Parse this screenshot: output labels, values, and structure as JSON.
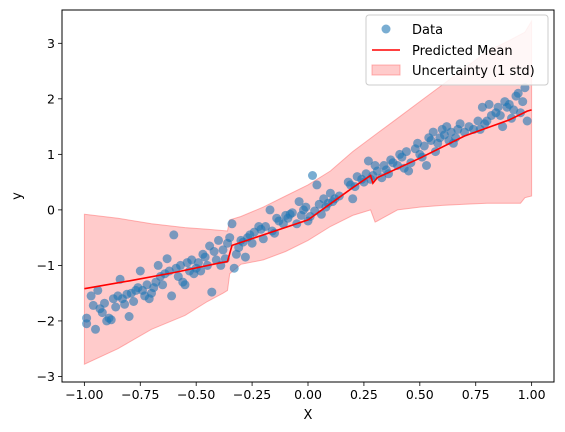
{
  "chart_data": {
    "type": "scatter",
    "title": "",
    "xlabel": "X",
    "ylabel": "y",
    "xlim": [
      -1.1,
      1.1
    ],
    "ylim": [
      -3.1,
      3.6
    ],
    "xticks": [
      -1.0,
      -0.75,
      -0.5,
      -0.25,
      0.0,
      0.25,
      0.5,
      0.75,
      1.0
    ],
    "xtick_labels": [
      "−1.00",
      "−0.75",
      "−0.50",
      "−0.25",
      "0.00",
      "0.25",
      "0.50",
      "0.75",
      "1.00"
    ],
    "yticks": [
      -3,
      -2,
      -1,
      0,
      1,
      2,
      3
    ],
    "ytick_labels": [
      "−3",
      "−2",
      "−1",
      "0",
      "1",
      "2",
      "3"
    ],
    "grid": false,
    "legend_position": "top-right",
    "series": [
      {
        "name": "Data",
        "kind": "scatter",
        "color": "#1f77b4",
        "points": [
          [
            -0.99,
            -1.95
          ],
          [
            -0.99,
            -2.05
          ],
          [
            -0.97,
            -1.55
          ],
          [
            -0.96,
            -1.72
          ],
          [
            -0.95,
            -2.15
          ],
          [
            -0.94,
            -1.45
          ],
          [
            -0.93,
            -1.78
          ],
          [
            -0.92,
            -1.85
          ],
          [
            -0.91,
            -1.68
          ],
          [
            -0.9,
            -2.0
          ],
          [
            -0.89,
            -1.95
          ],
          [
            -0.88,
            -1.98
          ],
          [
            -0.87,
            -1.6
          ],
          [
            -0.86,
            -1.75
          ],
          [
            -0.85,
            -1.55
          ],
          [
            -0.84,
            -1.25
          ],
          [
            -0.83,
            -1.6
          ],
          [
            -0.82,
            -1.7
          ],
          [
            -0.81,
            -1.52
          ],
          [
            -0.8,
            -1.92
          ],
          [
            -0.79,
            -1.5
          ],
          [
            -0.78,
            -1.65
          ],
          [
            -0.77,
            -1.45
          ],
          [
            -0.76,
            -1.4
          ],
          [
            -0.75,
            -1.1
          ],
          [
            -0.74,
            -1.45
          ],
          [
            -0.73,
            -1.55
          ],
          [
            -0.72,
            -1.35
          ],
          [
            -0.71,
            -1.6
          ],
          [
            -0.7,
            -1.5
          ],
          [
            -0.69,
            -1.4
          ],
          [
            -0.68,
            -1.3
          ],
          [
            -0.67,
            -1.0
          ],
          [
            -0.66,
            -1.2
          ],
          [
            -0.65,
            -1.35
          ],
          [
            -0.64,
            -1.15
          ],
          [
            -0.63,
            -0.88
          ],
          [
            -0.62,
            -1.1
          ],
          [
            -0.61,
            -1.55
          ],
          [
            -0.6,
            -0.45
          ],
          [
            -0.59,
            -1.05
          ],
          [
            -0.58,
            -1.2
          ],
          [
            -0.57,
            -1.0
          ],
          [
            -0.56,
            -1.3
          ],
          [
            -0.55,
            -1.35
          ],
          [
            -0.54,
            -0.95
          ],
          [
            -0.53,
            -1.1
          ],
          [
            -0.52,
            -0.9
          ],
          [
            -0.51,
            -1.15
          ],
          [
            -0.5,
            -1.05
          ],
          [
            -0.49,
            -0.95
          ],
          [
            -0.48,
            -1.1
          ],
          [
            -0.47,
            -0.8
          ],
          [
            -0.46,
            -0.85
          ],
          [
            -0.45,
            -1.0
          ],
          [
            -0.44,
            -0.65
          ],
          [
            -0.43,
            -1.48
          ],
          [
            -0.42,
            -0.75
          ],
          [
            -0.41,
            -0.9
          ],
          [
            -0.4,
            -0.55
          ],
          [
            -0.39,
            -1.0
          ],
          [
            -0.38,
            -0.72
          ],
          [
            -0.37,
            -0.88
          ],
          [
            -0.36,
            -0.6
          ],
          [
            -0.35,
            -0.5
          ],
          [
            -0.34,
            -0.25
          ],
          [
            -0.33,
            -1.05
          ],
          [
            -0.32,
            -0.8
          ],
          [
            -0.31,
            -0.68
          ],
          [
            -0.3,
            -0.55
          ],
          [
            -0.29,
            -0.58
          ],
          [
            -0.28,
            -0.85
          ],
          [
            -0.27,
            -0.5
          ],
          [
            -0.26,
            -0.45
          ],
          [
            -0.25,
            -0.6
          ],
          [
            -0.24,
            -0.4
          ],
          [
            -0.22,
            -0.3
          ],
          [
            -0.21,
            -0.35
          ],
          [
            -0.2,
            -0.52
          ],
          [
            -0.19,
            -0.3
          ],
          [
            -0.17,
            0.0
          ],
          [
            -0.16,
            -0.38
          ],
          [
            -0.15,
            -0.42
          ],
          [
            -0.14,
            -0.15
          ],
          [
            -0.13,
            -0.2
          ],
          [
            -0.11,
            -0.25
          ],
          [
            -0.1,
            -0.1
          ],
          [
            -0.09,
            -0.15
          ],
          [
            -0.08,
            -0.08
          ],
          [
            -0.07,
            -0.05
          ],
          [
            -0.05,
            -0.25
          ],
          [
            -0.04,
            0.15
          ],
          [
            -0.03,
            -0.1
          ],
          [
            -0.02,
            0.0
          ],
          [
            -0.01,
            0.05
          ],
          [
            0.0,
            -0.2
          ],
          [
            0.01,
            -0.12
          ],
          [
            0.02,
            0.62
          ],
          [
            0.03,
            -0.02
          ],
          [
            0.04,
            0.45
          ],
          [
            0.05,
            0.1
          ],
          [
            0.06,
            -0.08
          ],
          [
            0.07,
            0.2
          ],
          [
            0.08,
            0.05
          ],
          [
            0.09,
            0.12
          ],
          [
            0.1,
            0.3
          ],
          [
            0.11,
            0.15
          ],
          [
            0.12,
            0.2
          ],
          [
            0.14,
            0.25
          ],
          [
            0.18,
            0.5
          ],
          [
            0.19,
            0.45
          ],
          [
            0.2,
            0.2
          ],
          [
            0.21,
            0.42
          ],
          [
            0.22,
            0.6
          ],
          [
            0.24,
            0.55
          ],
          [
            0.25,
            0.5
          ],
          [
            0.26,
            0.65
          ],
          [
            0.27,
            0.88
          ],
          [
            0.28,
            0.55
          ],
          [
            0.29,
            0.62
          ],
          [
            0.3,
            0.8
          ],
          [
            0.31,
            0.7
          ],
          [
            0.33,
            0.58
          ],
          [
            0.34,
            0.8
          ],
          [
            0.35,
            0.72
          ],
          [
            0.36,
            0.65
          ],
          [
            0.37,
            0.9
          ],
          [
            0.38,
            0.85
          ],
          [
            0.4,
            0.8
          ],
          [
            0.41,
            1.0
          ],
          [
            0.42,
            0.95
          ],
          [
            0.43,
            0.75
          ],
          [
            0.44,
            1.05
          ],
          [
            0.45,
            0.7
          ],
          [
            0.46,
            0.85
          ],
          [
            0.48,
            1.1
          ],
          [
            0.49,
            1.2
          ],
          [
            0.5,
            1.0
          ],
          [
            0.51,
            0.95
          ],
          [
            0.52,
            1.15
          ],
          [
            0.53,
            0.8
          ],
          [
            0.54,
            1.3
          ],
          [
            0.55,
            1.25
          ],
          [
            0.56,
            1.4
          ],
          [
            0.57,
            1.05
          ],
          [
            0.58,
            1.2
          ],
          [
            0.59,
            1.3
          ],
          [
            0.6,
            1.45
          ],
          [
            0.61,
            1.35
          ],
          [
            0.62,
            1.5
          ],
          [
            0.63,
            1.25
          ],
          [
            0.64,
            1.4
          ],
          [
            0.65,
            1.2
          ],
          [
            0.66,
            1.3
          ],
          [
            0.67,
            1.45
          ],
          [
            0.68,
            1.55
          ],
          [
            0.7,
            1.4
          ],
          [
            0.72,
            1.5
          ],
          [
            0.74,
            1.45
          ],
          [
            0.76,
            1.6
          ],
          [
            0.77,
            1.45
          ],
          [
            0.78,
            1.85
          ],
          [
            0.79,
            1.55
          ],
          [
            0.8,
            1.6
          ],
          [
            0.81,
            1.9
          ],
          [
            0.82,
            1.7
          ],
          [
            0.84,
            1.75
          ],
          [
            0.85,
            1.85
          ],
          [
            0.86,
            1.7
          ],
          [
            0.87,
            1.5
          ],
          [
            0.88,
            1.95
          ],
          [
            0.89,
            1.85
          ],
          [
            0.9,
            1.9
          ],
          [
            0.91,
            1.65
          ],
          [
            0.92,
            1.8
          ],
          [
            0.93,
            2.05
          ],
          [
            0.94,
            2.1
          ],
          [
            0.95,
            1.75
          ],
          [
            0.96,
            1.95
          ],
          [
            0.97,
            2.2
          ],
          [
            0.98,
            1.6
          ]
        ]
      },
      {
        "name": "Predicted Mean",
        "kind": "line",
        "color": "#ff0000",
        "points": [
          [
            -1.0,
            -1.42
          ],
          [
            -0.8,
            -1.28
          ],
          [
            -0.6,
            -1.13
          ],
          [
            -0.4,
            -0.96
          ],
          [
            -0.36,
            -0.93
          ],
          [
            -0.34,
            -0.64
          ],
          [
            -0.2,
            -0.45
          ],
          [
            0.0,
            -0.18
          ],
          [
            0.2,
            0.4
          ],
          [
            0.28,
            0.62
          ],
          [
            0.29,
            0.48
          ],
          [
            0.31,
            0.58
          ],
          [
            0.5,
            0.93
          ],
          [
            0.7,
            1.33
          ],
          [
            0.9,
            1.62
          ],
          [
            0.98,
            1.78
          ],
          [
            1.0,
            1.8
          ]
        ]
      },
      {
        "name": "Uncertainty (1 std)",
        "kind": "band",
        "color": "#ff6b6b",
        "upper": [
          [
            -1.0,
            -0.08
          ],
          [
            -0.85,
            -0.15
          ],
          [
            -0.7,
            -0.25
          ],
          [
            -0.55,
            -0.32
          ],
          [
            -0.45,
            -0.35
          ],
          [
            -0.36,
            -0.38
          ],
          [
            -0.35,
            -0.18
          ],
          [
            -0.3,
            -0.12
          ],
          [
            -0.2,
            0.05
          ],
          [
            -0.1,
            0.25
          ],
          [
            0.0,
            0.45
          ],
          [
            0.1,
            0.7
          ],
          [
            0.2,
            1.05
          ],
          [
            0.3,
            1.35
          ],
          [
            0.4,
            1.65
          ],
          [
            0.5,
            1.95
          ],
          [
            0.6,
            2.25
          ],
          [
            0.7,
            2.55
          ],
          [
            0.8,
            2.85
          ],
          [
            0.9,
            3.05
          ],
          [
            0.97,
            3.2
          ],
          [
            1.0,
            3.4
          ]
        ],
        "lower": [
          [
            -1.0,
            -2.78
          ],
          [
            -0.85,
            -2.5
          ],
          [
            -0.7,
            -2.15
          ],
          [
            -0.55,
            -1.9
          ],
          [
            -0.45,
            -1.65
          ],
          [
            -0.38,
            -1.5
          ],
          [
            -0.36,
            -1.45
          ],
          [
            -0.35,
            -1.15
          ],
          [
            -0.3,
            -0.98
          ],
          [
            -0.2,
            -0.9
          ],
          [
            -0.1,
            -0.75
          ],
          [
            0.0,
            -0.55
          ],
          [
            0.1,
            -0.3
          ],
          [
            0.2,
            -0.1
          ],
          [
            0.28,
            0.0
          ],
          [
            0.3,
            -0.22
          ],
          [
            0.31,
            -0.2
          ],
          [
            0.4,
            0.0
          ],
          [
            0.5,
            0.05
          ],
          [
            0.6,
            0.08
          ],
          [
            0.7,
            0.1
          ],
          [
            0.8,
            0.12
          ],
          [
            0.9,
            0.12
          ],
          [
            0.95,
            0.12
          ],
          [
            0.97,
            0.22
          ],
          [
            1.0,
            0.25
          ]
        ]
      }
    ]
  }
}
